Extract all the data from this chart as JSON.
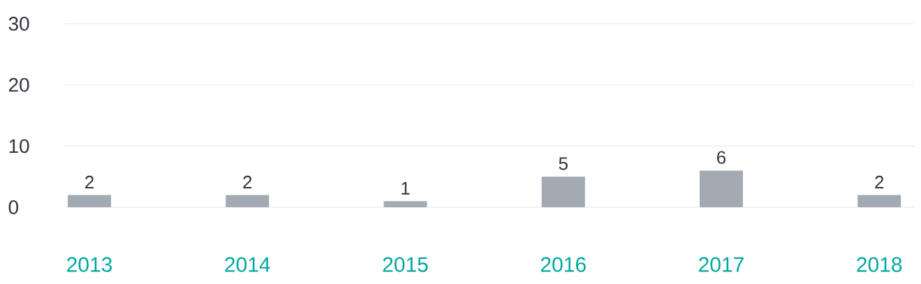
{
  "chart_data": {
    "type": "bar",
    "categories": [
      "2013",
      "2014",
      "2015",
      "2016",
      "2017",
      "2018"
    ],
    "values": [
      2,
      2,
      1,
      5,
      6,
      2
    ],
    "color": "#a2aab3",
    "ylim": [
      0,
      30
    ],
    "yticks": [
      0,
      10,
      20,
      30
    ],
    "grid": "y",
    "data_labels": true
  }
}
